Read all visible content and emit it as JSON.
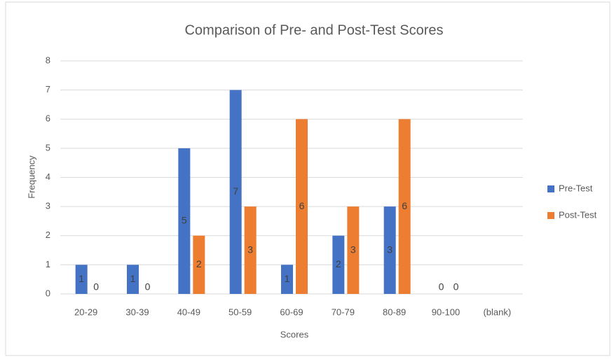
{
  "chart_data": {
    "type": "bar",
    "title": "Comparison of Pre- and Post-Test Scores",
    "x_label": "Scores",
    "y_label": "Frequency",
    "categories": [
      "20-29",
      "30-39",
      "40-49",
      "50-59",
      "60-69",
      "70-79",
      "80-89",
      "90-100",
      "(blank)"
    ],
    "series": [
      {
        "name": "Pre-Test",
        "color": "#4472c4",
        "values": [
          1,
          1,
          5,
          7,
          1,
          2,
          3,
          0,
          null
        ]
      },
      {
        "name": "Post-Test",
        "color": "#ed7d31",
        "values": [
          0,
          0,
          2,
          3,
          6,
          3,
          6,
          0,
          null
        ]
      }
    ],
    "ylim": [
      0,
      8
    ],
    "yticks": [
      0,
      1,
      2,
      3,
      4,
      5,
      6,
      7,
      8
    ],
    "grid": true,
    "legend": "right",
    "data_labels": true
  }
}
